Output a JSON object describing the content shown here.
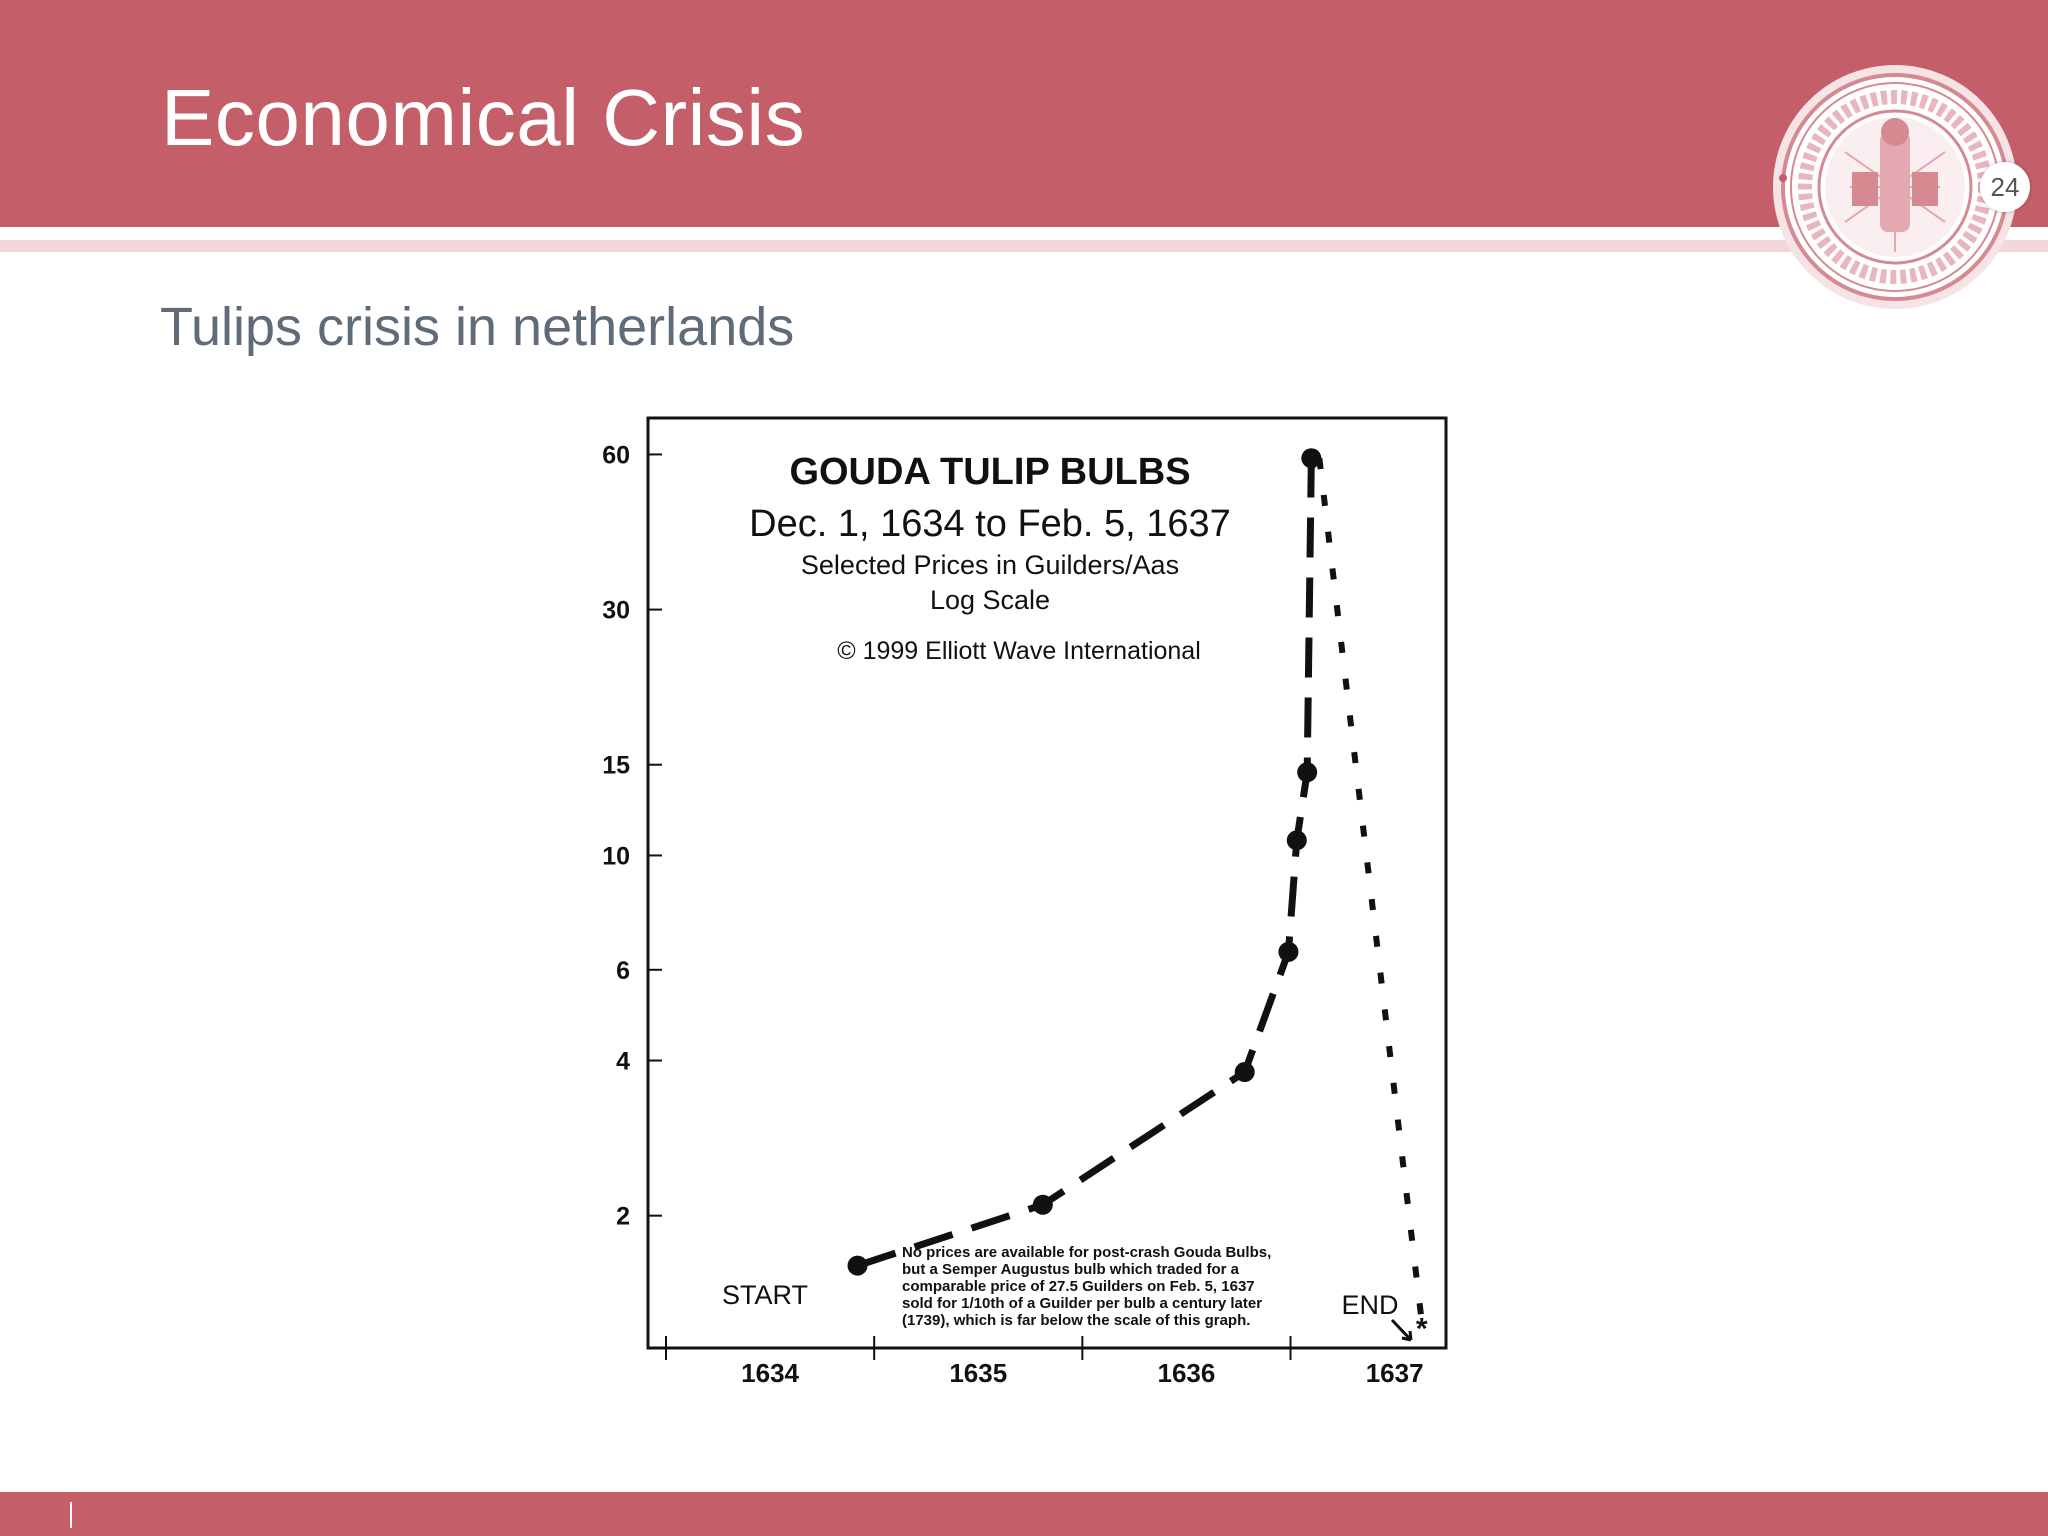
{
  "slide": {
    "title": "Economical Crisis",
    "subtitle": "Tulips crisis in netherlands",
    "page_number": "24",
    "accent_color": "#c45f69",
    "seal_icon": "university-seal-icon"
  },
  "chart_data": {
    "type": "line",
    "title": "GOUDA TULIP BULBS",
    "subtitle": "Dec. 1, 1634 to Feb. 5, 1637",
    "ylabel": "Selected Prices in Guilders/Aas",
    "scale_label": "Log Scale",
    "copyright": "© 1999 Elliott Wave International",
    "y_scale": "log",
    "ylim": [
      1.2,
      64
    ],
    "xlim": [
      1634.0,
      1637.67
    ],
    "x_ticks": [
      "1634",
      "1635",
      "1636",
      "1637"
    ],
    "y_ticks": [
      60,
      30,
      15,
      10,
      6,
      4,
      2
    ],
    "series": [
      {
        "x": [
          1634.92,
          1635.81,
          1636.78,
          1636.99,
          1637.03,
          1637.08,
          1637.1
        ],
        "y": [
          1.6,
          2.1,
          3.8,
          6.5,
          10.7,
          14.5,
          59.0
        ]
      }
    ],
    "collapse": {
      "x": [
        1637.1,
        1637.63
      ],
      "y": [
        59.0,
        1.25
      ]
    },
    "end_marker": {
      "x": 1637.63,
      "y": 1.22
    },
    "annotations": {
      "start": "START",
      "end": "END",
      "note": [
        "No prices are available for post-crash Gouda Bulbs,",
        "but a Semper Augustus bulb which traded for a",
        "comparable price of 27.5 Guilders on Feb. 5, 1637",
        "sold for 1/10th of a Guilder per bulb a century later",
        "(1739), which is far below the scale of this graph."
      ]
    }
  }
}
